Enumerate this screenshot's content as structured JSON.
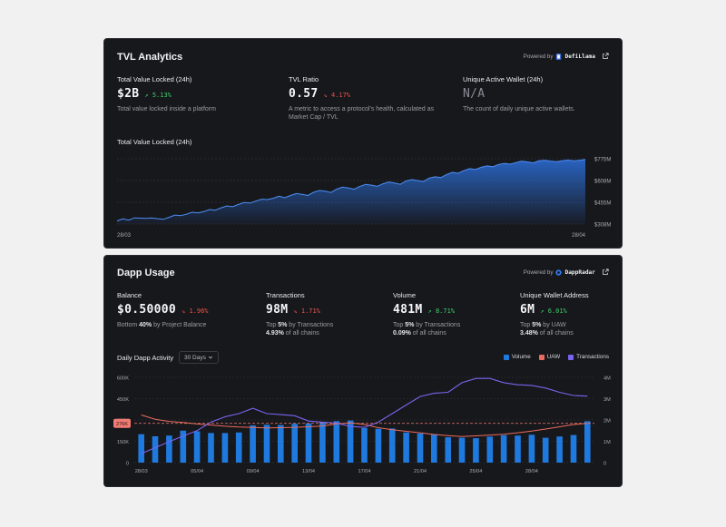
{
  "tvl": {
    "title": "TVL Analytics",
    "powered_by": "Powered by",
    "brand": "DefiLlama",
    "metrics": [
      {
        "label": "Total Value Locked (24h)",
        "value": "$2B",
        "change": "5.13%",
        "direction": "up",
        "desc": "Total value locked inside a platform"
      },
      {
        "label": "TVL Ratio",
        "value": "0.57",
        "change": "4.17%",
        "direction": "down",
        "desc": "A metric to access a protocol's health, calculated as Market Cap / TVL"
      },
      {
        "label": "Unique Active Wallet (24h)",
        "value": "N/A",
        "change": "",
        "direction": "",
        "desc": "The count of daily unique active wallets."
      }
    ]
  },
  "dapp": {
    "title": "Dapp Usage",
    "powered_by": "Powered by",
    "brand": "DappRadar",
    "metrics": [
      {
        "label": "Balance",
        "value": "$0.50000",
        "change": "1.96%",
        "direction": "down",
        "line1_pre": "Bottom ",
        "line1_bold": "40%",
        "line1_post": " by Project Balance",
        "line2_bold": "",
        "line2_post": ""
      },
      {
        "label": "Transactions",
        "value": "98M",
        "change": "1.71%",
        "direction": "down",
        "line1_pre": "Top ",
        "line1_bold": "5%",
        "line1_post": " by Transactions",
        "line2_bold": "4.93%",
        "line2_post": " of all chains"
      },
      {
        "label": "Volume",
        "value": "481M",
        "change": "8.71%",
        "direction": "up",
        "line1_pre": "Top ",
        "line1_bold": "5%",
        "line1_post": " by Transactions",
        "line2_bold": "0.09%",
        "line2_post": " of all chains"
      },
      {
        "label": "Unique Wallet Address",
        "value": "6M",
        "change": "6.01%",
        "direction": "up",
        "line1_pre": "Top ",
        "line1_bold": "5%",
        "line1_post": " by UAW",
        "line2_bold": "3.48%",
        "line2_post": " of all chains"
      }
    ],
    "chart_title": "Daily Dapp Activity",
    "period": "30 Days",
    "legend": [
      "Volume",
      "UAW",
      "Transactions"
    ]
  },
  "chart_data": [
    {
      "type": "area",
      "title": "Total Value Locked (24h)",
      "x_labels": [
        "28/03",
        "28/04"
      ],
      "y_ticks": [
        "$775M",
        "$608M",
        "$455M",
        "$308M"
      ],
      "ylim": [
        308,
        775
      ],
      "color": "#2f7cf6",
      "values": [
        330,
        345,
        336,
        352,
        350,
        348,
        352,
        346,
        342,
        356,
        372,
        368,
        378,
        392,
        388,
        397,
        412,
        407,
        424,
        438,
        432,
        448,
        462,
        458,
        472,
        486,
        483,
        492,
        507,
        496,
        512,
        526,
        520,
        512,
        535,
        548,
        543,
        534,
        558,
        572,
        566,
        557,
        578,
        592,
        586,
        578,
        596,
        608,
        601,
        592,
        616,
        626,
        619,
        612,
        636,
        646,
        640,
        662,
        678,
        671,
        690,
        704,
        698,
        714,
        724,
        718,
        734,
        742,
        736,
        748,
        758,
        752,
        746,
        760,
        764,
        758,
        754,
        761,
        765,
        760,
        764,
        770
      ]
    },
    {
      "type": "bar+line",
      "title": "Daily Dapp Activity",
      "x_labels": [
        "28/03",
        "05/04",
        "09/04",
        "13/04",
        "17/04",
        "21/04",
        "25/04",
        "28/04"
      ],
      "y_left_ticks": [
        "600K",
        "450K",
        "300K",
        "150K",
        "0"
      ],
      "y_right_ticks": [
        "4M",
        "3M",
        "2M",
        "1M",
        "0"
      ],
      "reference_label": "276K",
      "reference_value": 276000,
      "series": [
        {
          "name": "Volume",
          "color": "#1f7ae0",
          "axis": "left",
          "values": [
            200000,
            185000,
            190000,
            225000,
            220000,
            208000,
            208000,
            212000,
            262000,
            266000,
            264000,
            273000,
            276000,
            284000,
            292000,
            296000,
            243000,
            238000,
            240000,
            212000,
            205000,
            200000,
            178000,
            175000,
            172000,
            183000,
            193000,
            190000,
            196000,
            175000,
            184000,
            194000,
            291000
          ]
        },
        {
          "name": "UAW",
          "color": "#ea6b5f",
          "axis": "left",
          "values": [
            335000,
            305000,
            290000,
            283000,
            272000,
            264000,
            256000,
            250000,
            247000,
            244000,
            246000,
            248000,
            252000,
            258000,
            272000,
            280000,
            268000,
            246000,
            232000,
            220000,
            210000,
            198000,
            190000,
            184000,
            188000,
            194000,
            200000,
            210000,
            222000,
            236000,
            252000,
            268000,
            276000
          ]
        },
        {
          "name": "Transactions",
          "color": "#7b63ee",
          "axis": "right",
          "values": [
            420000,
            700000,
            980000,
            1250000,
            1500000,
            1900000,
            2150000,
            2300000,
            2550000,
            2300000,
            2250000,
            2200000,
            1950000,
            1900000,
            1850000,
            1700000,
            1650000,
            1900000,
            2300000,
            2700000,
            3100000,
            3250000,
            3300000,
            3750000,
            3950000,
            3950000,
            3750000,
            3650000,
            3620000,
            3500000,
            3300000,
            3150000,
            3120000
          ]
        }
      ]
    }
  ]
}
